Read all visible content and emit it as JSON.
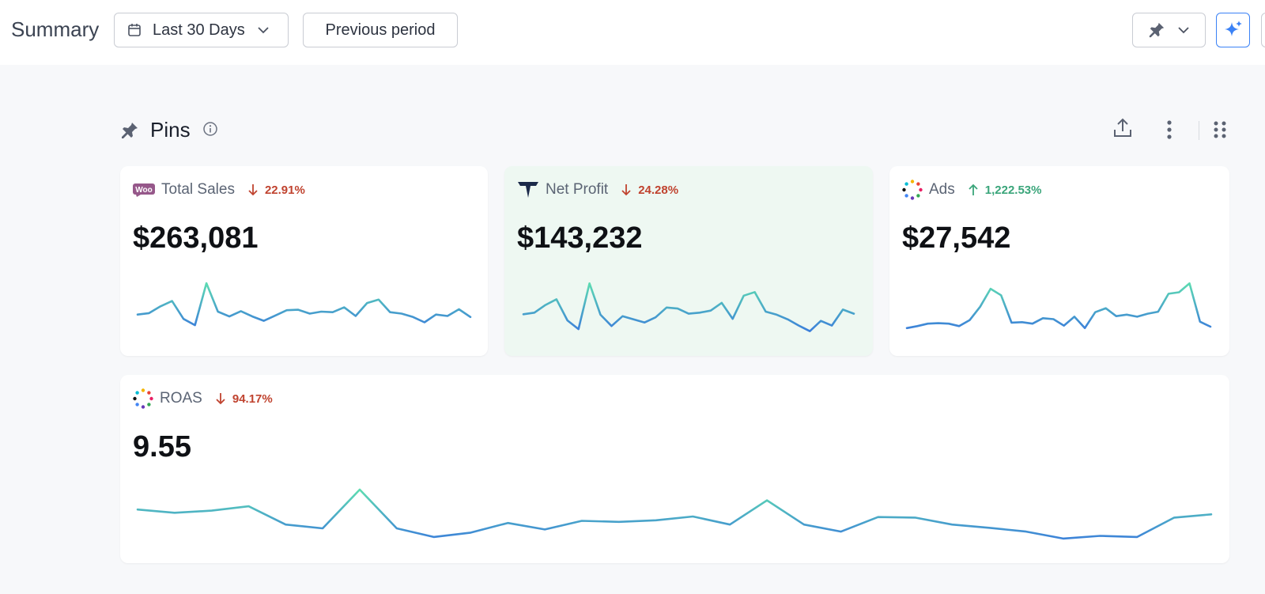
{
  "header": {
    "title": "Summary",
    "date_range": "Last 30 Days",
    "compare": "Previous period"
  },
  "icons": [
    "calendar-icon",
    "chevron-down-icon",
    "pin-icon",
    "sparkle-icon",
    "info-icon",
    "upload-icon",
    "more-vertical-icon",
    "drag-handle-icon"
  ],
  "section": {
    "title": "Pins"
  },
  "colors": {
    "down": "#c0432f",
    "up": "#3aa57a",
    "accent": "#3b82f6",
    "spark_start": "#5fe0b0",
    "spark_end": "#3b7ddb"
  },
  "cards": [
    {
      "label": "Total Sales",
      "source_icon": "woocommerce-icon",
      "delta": "22.91%",
      "direction": "down",
      "value": "$263,081",
      "trend": [
        0.3,
        0.33,
        0.47,
        0.58,
        0.21,
        0.08,
        0.95,
        0.36,
        0.26,
        0.37,
        0.26,
        0.17,
        0.28,
        0.39,
        0.4,
        0.32,
        0.36,
        0.35,
        0.45,
        0.27,
        0.54,
        0.61,
        0.35,
        0.32,
        0.25,
        0.14,
        0.3,
        0.27,
        0.41,
        0.25
      ]
    },
    {
      "label": "Net Profit",
      "source_icon": "brand-t-icon",
      "delta": "24.28%",
      "direction": "down",
      "value": "$143,232",
      "trend": [
        0.35,
        0.38,
        0.53,
        0.64,
        0.23,
        0.06,
        0.95,
        0.34,
        0.12,
        0.31,
        0.25,
        0.19,
        0.29,
        0.48,
        0.46,
        0.36,
        0.38,
        0.42,
        0.57,
        0.26,
        0.71,
        0.78,
        0.4,
        0.34,
        0.25,
        0.13,
        0.02,
        0.22,
        0.13,
        0.44,
        0.36
      ]
    },
    {
      "label": "Ads",
      "source_icon": "multicolor-dots-icon",
      "delta": "1,222.53%",
      "direction": "up",
      "value": "$27,542",
      "trend": [
        0.05,
        0.09,
        0.14,
        0.15,
        0.14,
        0.09,
        0.21,
        0.48,
        0.84,
        0.71,
        0.16,
        0.17,
        0.14,
        0.25,
        0.23,
        0.1,
        0.28,
        0.05,
        0.37,
        0.45,
        0.29,
        0.32,
        0.28,
        0.34,
        0.38,
        0.74,
        0.77,
        0.95,
        0.18,
        0.08
      ]
    },
    {
      "label": "ROAS",
      "source_icon": "multicolor-dots-icon",
      "delta": "94.17%",
      "direction": "down",
      "value": "9.55",
      "trend": [
        0.6,
        0.54,
        0.58,
        0.66,
        0.32,
        0.25,
        0.97,
        0.25,
        0.09,
        0.17,
        0.35,
        0.23,
        0.39,
        0.37,
        0.4,
        0.47,
        0.32,
        0.77,
        0.32,
        0.19,
        0.46,
        0.45,
        0.32,
        0.26,
        0.19,
        0.06,
        0.11,
        0.09,
        0.45,
        0.51
      ]
    }
  ]
}
